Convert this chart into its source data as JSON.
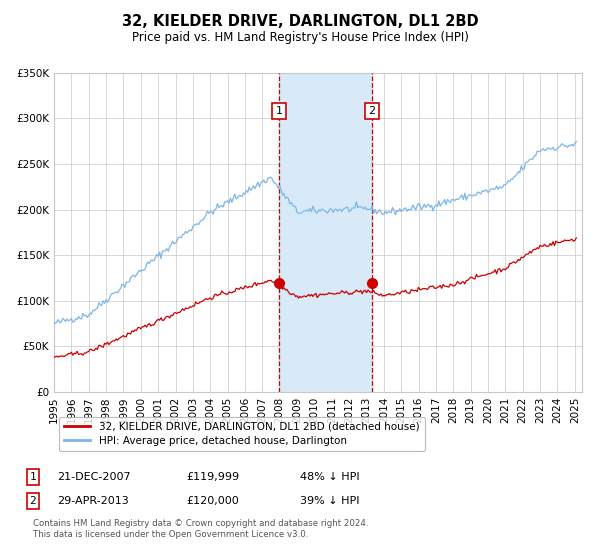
{
  "title": "32, KIELDER DRIVE, DARLINGTON, DL1 2BD",
  "subtitle": "Price paid vs. HM Land Registry's House Price Index (HPI)",
  "legend_property": "32, KIELDER DRIVE, DARLINGTON, DL1 2BD (detached house)",
  "legend_hpi": "HPI: Average price, detached house, Darlington",
  "sale1_label": "1",
  "sale1_date_str": "21-DEC-2007",
  "sale1_price": 119999,
  "sale1_price_str": "£119,999",
  "sale1_pct_str": "48% ↓ HPI",
  "sale2_label": "2",
  "sale2_date_str": "29-APR-2013",
  "sale2_price": 120000,
  "sale2_price_str": "£120,000",
  "sale2_pct_str": "39% ↓ HPI",
  "footer_line1": "Contains HM Land Registry data © Crown copyright and database right 2024.",
  "footer_line2": "This data is licensed under the Open Government Licence v3.0.",
  "hpi_color": "#7EB6E8",
  "property_color": "#CC0000",
  "highlight_color": "#D8EAF8",
  "grid_color": "#C8C8C8",
  "background_color": "#FFFFFF",
  "ylim_max": 350000,
  "sale1_year": 2007,
  "sale1_month": 12,
  "sale1_day": 21,
  "sale2_year": 2013,
  "sale2_month": 4,
  "sale2_day": 29
}
